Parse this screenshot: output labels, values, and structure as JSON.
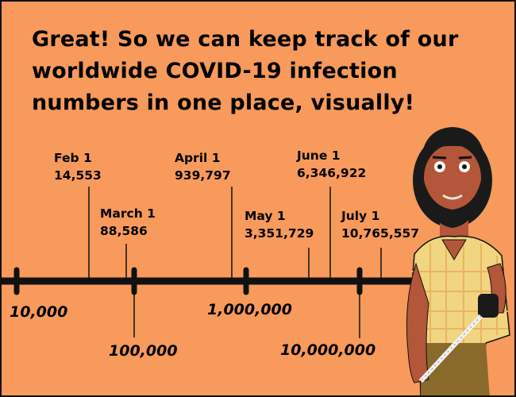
{
  "headline": "Great!  So we can keep track of our worldwide COVID-19 infection numbers in one place, visually!",
  "milestones": [
    {
      "date": "Feb 1",
      "count": "14,553"
    },
    {
      "date": "March 1",
      "count": "88,586"
    },
    {
      "date": "April 1",
      "count": "939,797"
    },
    {
      "date": "May 1",
      "count": "3,351,729"
    },
    {
      "date": "June 1",
      "count": "6,346,922"
    },
    {
      "date": "July 1",
      "count": "10,765,557"
    }
  ],
  "scale_marks": [
    "10,000",
    "100,000",
    "1,000,000",
    "10,000,000"
  ],
  "colors": {
    "background": "#f79a5c",
    "shirt": "#f2d580",
    "skin": "#b4563a",
    "hair": "#1a1a1a",
    "pants": "#8a6a2a"
  }
}
